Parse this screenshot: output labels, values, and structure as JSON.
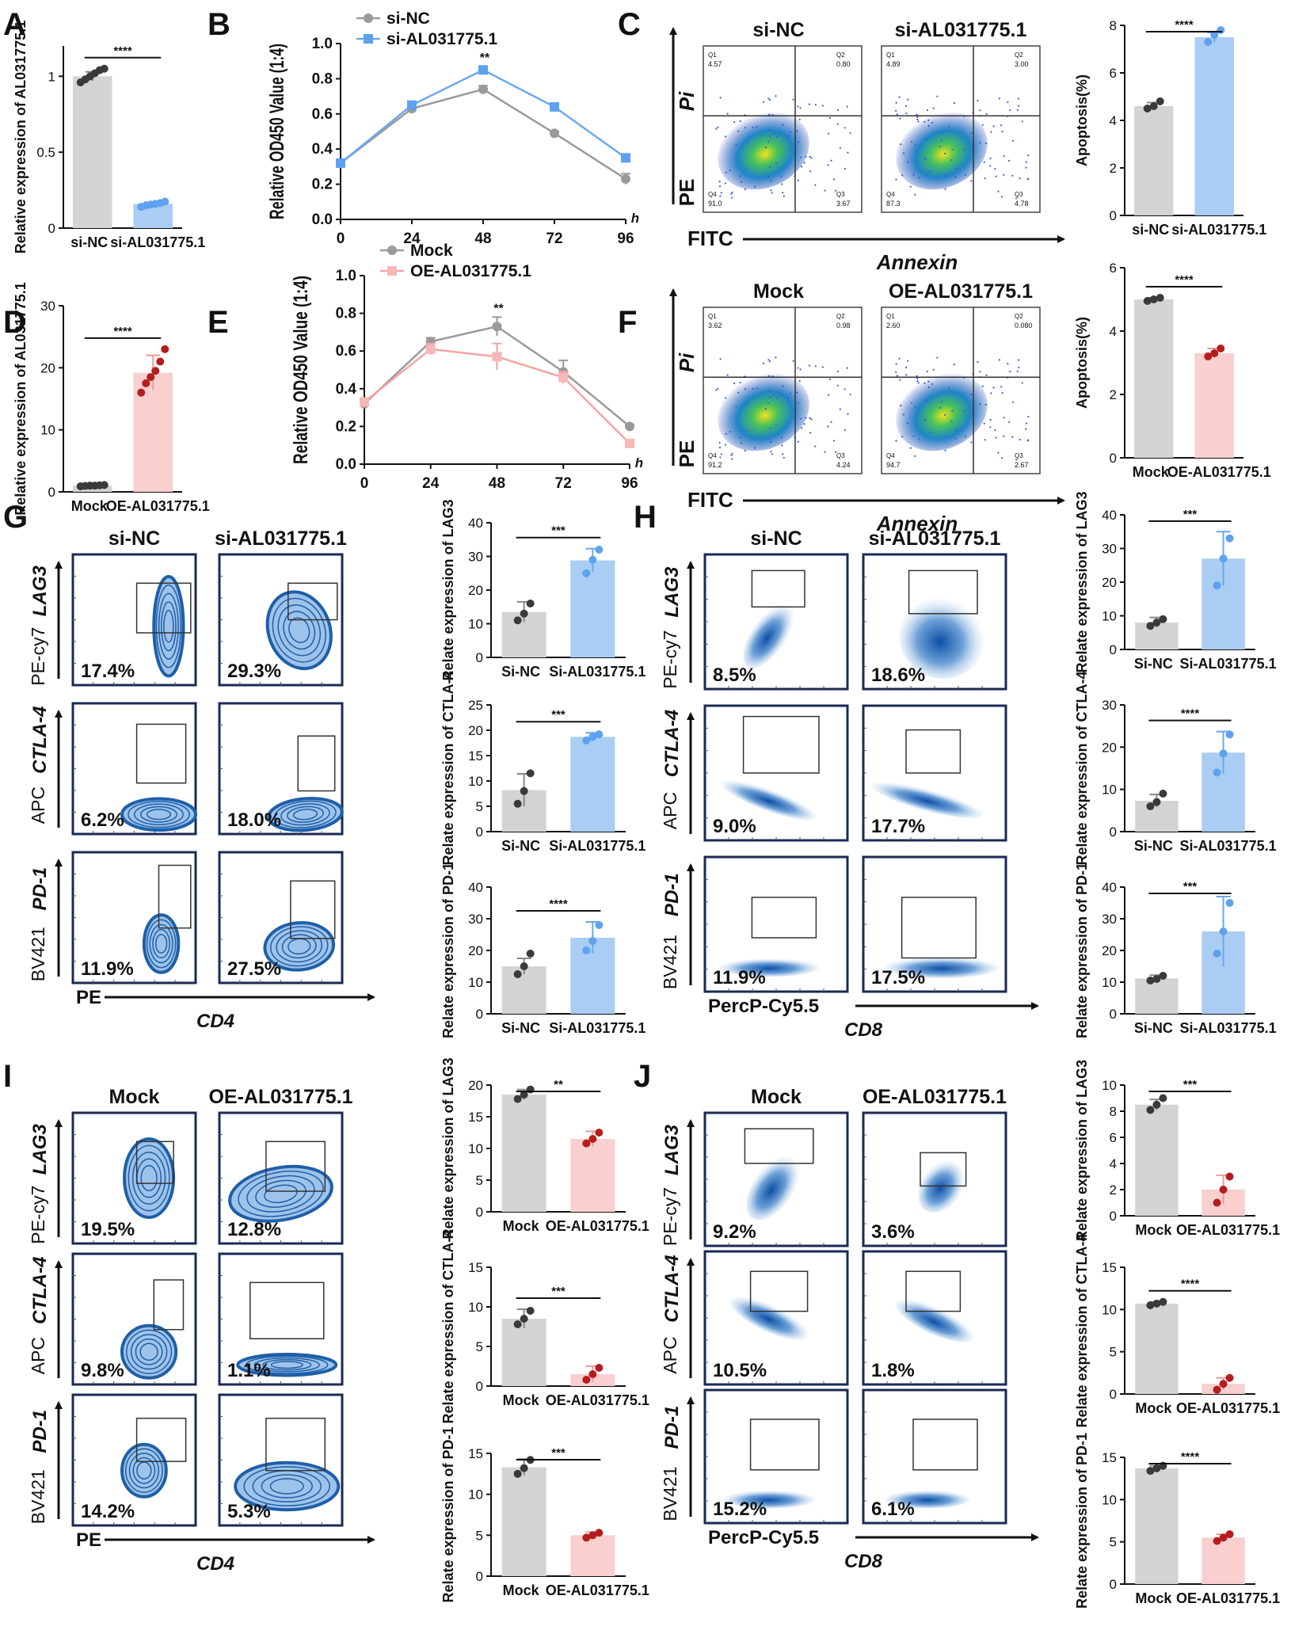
{
  "figure": {
    "colors": {
      "grey": "#d4d4d4",
      "greyDot": "#3a3a3a",
      "blue": "#a9cdf3",
      "blueDot": "#5ea1ee",
      "blueLine": "#6ba8ee",
      "pink": "#f9cfcf",
      "redDot": "#b51d1d",
      "pinkLine": "#ef9a9a",
      "flowBlue": "#1f5fa8"
    }
  },
  "panels": [
    {
      "id": "A",
      "letter": "A",
      "title": "",
      "dual_labels": false
    },
    {
      "id": "B",
      "letter": "B"
    },
    {
      "id": "C",
      "letter": "C",
      "flow_labels": [
        "si-NC",
        "si-AL031775.1"
      ],
      "y_top": "Pi",
      "y_bottom": "PE",
      "x_left": "FITC",
      "x_right": "Annexin",
      "quads": [
        [
          "4.57",
          "0.80",
          "91.0",
          "3.67"
        ],
        [
          "4.89",
          "3.00",
          "87.3",
          "4.78"
        ]
      ]
    },
    {
      "id": "D",
      "letter": "D"
    },
    {
      "id": "E",
      "letter": "E"
    },
    {
      "id": "F",
      "letter": "F",
      "flow_labels": [
        "Mock",
        "OE-AL031775.1"
      ],
      "y_top": "Pi",
      "y_bottom": "PE",
      "x_left": "FITC",
      "x_right": "Annexin",
      "quads": [
        [
          "3.62",
          "0.98",
          "91.2",
          "4.24"
        ],
        [
          "2.60",
          "0.080",
          "94.7",
          "2.67"
        ]
      ]
    },
    {
      "id": "G",
      "letter": "G",
      "flow_labels": [
        "si-NC",
        "si-AL031775.1"
      ],
      "x_left": "PE",
      "x_right": "CD4",
      "rows": [
        {
          "marker": "LAG3",
          "channel": "PE-cy7",
          "pct": [
            "17.4%",
            "29.3%"
          ]
        },
        {
          "marker": "CTLA-4",
          "channel": "APC",
          "pct": [
            "6.2%",
            "18.0%"
          ]
        },
        {
          "marker": "PD-1",
          "channel": "BV421",
          "pct": [
            "11.9%",
            "27.5%"
          ]
        }
      ]
    },
    {
      "id": "H",
      "letter": "H",
      "flow_labels": [
        "si-NC",
        "si-AL031775.1"
      ],
      "x_left": "PercP-Cy5.5",
      "x_right": "CD8",
      "rows": [
        {
          "marker": "LAG3",
          "channel": "PE-cy7",
          "pct": [
            "8.5%",
            "18.6%"
          ]
        },
        {
          "marker": "CTLA-4",
          "channel": "APC",
          "pct": [
            "9.0%",
            "17.7%"
          ]
        },
        {
          "marker": "PD-1",
          "channel": "BV421",
          "pct": [
            "11.9%",
            "17.5%"
          ]
        }
      ]
    },
    {
      "id": "I",
      "letter": "I",
      "flow_labels": [
        "Mock",
        "OE-AL031775.1"
      ],
      "x_left": "PE",
      "x_right": "CD4",
      "rows": [
        {
          "marker": "LAG3",
          "channel": "PE-cy7",
          "pct": [
            "19.5%",
            "12.8%"
          ]
        },
        {
          "marker": "CTLA-4",
          "channel": "APC",
          "pct": [
            "9.8%",
            "1.1%"
          ]
        },
        {
          "marker": "PD-1",
          "channel": "BV421",
          "pct": [
            "14.2%",
            "5.3%"
          ]
        }
      ]
    },
    {
      "id": "J",
      "letter": "J",
      "flow_labels": [
        "Mock",
        "OE-AL031775.1"
      ],
      "x_left": "PercP-Cy5.5",
      "x_right": "CD8",
      "rows": [
        {
          "marker": "LAG3",
          "channel": "PE-cy7",
          "pct": [
            "9.2%",
            "3.6%"
          ]
        },
        {
          "marker": "CTLA-4",
          "channel": "APC",
          "pct": [
            "10.5%",
            "1.8%"
          ]
        },
        {
          "marker": "PD-1",
          "channel": "BV421",
          "pct": [
            "15.2%",
            "6.1%"
          ]
        }
      ]
    }
  ],
  "chart_data": [
    {
      "id": "A",
      "type": "bar",
      "categories": [
        "si-NC",
        "si-AL031775.1"
      ],
      "values": [
        1.0,
        0.16
      ],
      "errors": [
        0.03,
        0.01
      ],
      "ylabel": "Relative expression of AL031775.1",
      "ylim": [
        0,
        1.2
      ],
      "yticks": [
        0.0,
        0.5,
        1.0
      ],
      "sig": "****",
      "color": "blue",
      "points": [
        [
          0.96,
          0.98,
          1.0,
          1.02,
          1.04,
          1.05
        ],
        [
          0.14,
          0.15,
          0.155,
          0.16,
          0.165,
          0.175
        ]
      ]
    },
    {
      "id": "B",
      "type": "line",
      "x": [
        0,
        24,
        48,
        72,
        96
      ],
      "xunit": "h",
      "ylabel": "Relative OD450 Value (1:4)",
      "ylim": [
        0,
        1.0
      ],
      "yticks": [
        0.0,
        0.2,
        0.4,
        0.6,
        0.8,
        1.0
      ],
      "sig": "**",
      "sig_x": 48,
      "series": [
        {
          "name": "si-NC",
          "values": [
            0.32,
            0.63,
            0.74,
            0.49,
            0.23
          ],
          "errors": [
            0.02,
            0.02,
            0.02,
            0.01,
            0.03
          ]
        },
        {
          "name": "si-AL031775.1",
          "values": [
            0.32,
            0.65,
            0.85,
            0.64,
            0.35
          ],
          "errors": [
            0.02,
            0.01,
            0.02,
            0.01,
            0.02
          ]
        }
      ],
      "color": "blue"
    },
    {
      "id": "C",
      "type": "bar",
      "categories": [
        "si-NC",
        "si-AL031775.1"
      ],
      "values": [
        4.6,
        7.5
      ],
      "errors": [
        0.15,
        0.2
      ],
      "ylabel": "Apoptosis(%)",
      "ylim": [
        0,
        8
      ],
      "yticks": [
        0,
        2,
        4,
        6,
        8
      ],
      "sig": "****",
      "color": "blue",
      "points": [
        [
          4.5,
          4.6,
          4.8
        ],
        [
          7.3,
          7.6,
          7.8
        ]
      ]
    },
    {
      "id": "D",
      "type": "bar",
      "categories": [
        "Mock",
        "OE-AL031775.1"
      ],
      "values": [
        1.0,
        19.2
      ],
      "errors": [
        0.1,
        2.8
      ],
      "ylabel": "Relative expression of AL031775.1",
      "ylim": [
        0,
        30
      ],
      "yticks": [
        0,
        10,
        20,
        30
      ],
      "sig": "****",
      "color": "red",
      "points": [
        [
          0.9,
          0.95,
          1.0,
          1.0,
          1.05,
          1.1
        ],
        [
          16.0,
          17.5,
          18.5,
          19.5,
          21.0,
          23.0
        ]
      ]
    },
    {
      "id": "E",
      "type": "line",
      "x": [
        0,
        24,
        48,
        72,
        96
      ],
      "xunit": "h",
      "ylabel": "Relative OD450 Value (1:4)",
      "ylim": [
        0,
        1.0
      ],
      "yticks": [
        0.0,
        0.2,
        0.4,
        0.6,
        0.8,
        1.0
      ],
      "sig": "**",
      "sig_x": 48,
      "series": [
        {
          "name": "Mock",
          "values": [
            0.32,
            0.65,
            0.73,
            0.49,
            0.2
          ],
          "errors": [
            0.02,
            0.02,
            0.05,
            0.06,
            0.01
          ]
        },
        {
          "name": "OE-AL031775.1",
          "values": [
            0.33,
            0.61,
            0.57,
            0.46,
            0.11
          ],
          "errors": [
            0.02,
            0.03,
            0.07,
            0.03,
            0.01
          ]
        }
      ],
      "color": "red"
    },
    {
      "id": "F",
      "type": "bar",
      "categories": [
        "Mock",
        "OE-AL031775.1"
      ],
      "values": [
        5.0,
        3.3
      ],
      "errors": [
        0.05,
        0.15
      ],
      "ylabel": "Apoptosis(%)",
      "ylim": [
        0,
        6
      ],
      "yticks": [
        0,
        2,
        4,
        6
      ],
      "sig": "****",
      "color": "red",
      "points": [
        [
          4.95,
          5.0,
          5.05
        ],
        [
          3.2,
          3.3,
          3.45
        ]
      ]
    },
    {
      "id": "G1",
      "type": "bar",
      "categories": [
        "Si-NC",
        "Si-AL031775.1"
      ],
      "values": [
        13.5,
        28.8
      ],
      "errors": [
        3,
        3.5
      ],
      "ylabel": "Relate expression of LAG3",
      "ylim": [
        0,
        40
      ],
      "yticks": [
        0,
        10,
        20,
        30,
        40
      ],
      "sig": "***",
      "color": "blue",
      "points": [
        [
          11,
          13,
          16
        ],
        [
          25,
          29,
          32
        ]
      ]
    },
    {
      "id": "G2",
      "type": "bar",
      "categories": [
        "Si-NC",
        "Si-AL031775.1"
      ],
      "values": [
        8.2,
        18.7
      ],
      "errors": [
        3.2,
        0.8
      ],
      "ylabel": "Relate expression of CTLA-4",
      "ylim": [
        0,
        25
      ],
      "yticks": [
        0,
        5,
        10,
        15,
        20,
        25
      ],
      "sig": "***",
      "color": "blue",
      "points": [
        [
          5.5,
          8,
          11.5
        ],
        [
          18,
          18.7,
          19.2
        ]
      ]
    },
    {
      "id": "G3",
      "type": "bar",
      "categories": [
        "Si-NC",
        "Si-AL031775.1"
      ],
      "values": [
        15,
        24
      ],
      "errors": [
        2.5,
        5
      ],
      "ylabel": "Relate expression of PD-1",
      "ylim": [
        0,
        40
      ],
      "yticks": [
        0,
        10,
        20,
        30,
        40
      ],
      "sig": "****",
      "color": "blue",
      "points": [
        [
          12.5,
          15,
          19
        ],
        [
          20,
          23,
          28
        ]
      ]
    },
    {
      "id": "H1",
      "type": "bar",
      "categories": [
        "Si-NC",
        "Si-AL031775.1"
      ],
      "values": [
        8,
        27
      ],
      "errors": [
        1.5,
        8
      ],
      "ylabel": "Relate expression of LAG3",
      "ylim": [
        0,
        40
      ],
      "yticks": [
        0,
        10,
        20,
        30,
        40
      ],
      "sig": "***",
      "color": "blue",
      "points": [
        [
          7,
          8,
          9
        ],
        [
          19,
          27,
          33
        ]
      ]
    },
    {
      "id": "H2",
      "type": "bar",
      "categories": [
        "Si-NC",
        "Si-AL031775.1"
      ],
      "values": [
        7.3,
        18.7
      ],
      "errors": [
        1.5,
        5
      ],
      "ylabel": "Relate expression of CTLA-4",
      "ylim": [
        0,
        30
      ],
      "yticks": [
        0,
        10,
        20,
        30
      ],
      "sig": "****",
      "color": "blue",
      "points": [
        [
          6,
          7,
          9
        ],
        [
          14,
          18.5,
          23
        ]
      ]
    },
    {
      "id": "H3",
      "type": "bar",
      "categories": [
        "Si-NC",
        "Si-AL031775.1"
      ],
      "values": [
        11.2,
        26
      ],
      "errors": [
        1,
        11
      ],
      "ylabel": "Relate expression of PD-1",
      "ylim": [
        0,
        40
      ],
      "yticks": [
        0,
        10,
        20,
        30,
        40
      ],
      "sig": "***",
      "color": "blue",
      "points": [
        [
          10.5,
          11,
          12
        ],
        [
          19,
          26,
          35
        ]
      ]
    },
    {
      "id": "I1",
      "type": "bar",
      "categories": [
        "Mock",
        "OE-AL031775.1"
      ],
      "values": [
        18.5,
        11.5
      ],
      "errors": [
        0.8,
        1.2
      ],
      "ylabel": "Relate expression of LAG3",
      "ylim": [
        0,
        20
      ],
      "yticks": [
        0,
        5,
        10,
        15,
        20
      ],
      "sig": "**",
      "color": "red",
      "points": [
        [
          17.8,
          18.5,
          19.3
        ],
        [
          10.8,
          11.5,
          12.5
        ]
      ]
    },
    {
      "id": "I2",
      "type": "bar",
      "categories": [
        "Mock",
        "OE-AL031775.1"
      ],
      "values": [
        8.5,
        1.5
      ],
      "errors": [
        1.2,
        1.0
      ],
      "ylabel": "Relate expression of CTLA-4",
      "ylim": [
        0,
        15
      ],
      "yticks": [
        0,
        5,
        10,
        15
      ],
      "sig": "***",
      "color": "red",
      "points": [
        [
          7.8,
          8.5,
          9.5
        ],
        [
          0.8,
          1.5,
          2.3
        ]
      ]
    },
    {
      "id": "I3",
      "type": "bar",
      "categories": [
        "Mock",
        "OE-AL031775.1"
      ],
      "values": [
        13.3,
        5
      ],
      "errors": [
        1,
        0.4
      ],
      "ylabel": "Relate expression of PD-1",
      "ylim": [
        0,
        15
      ],
      "yticks": [
        0,
        5,
        10,
        15
      ],
      "sig": "***",
      "color": "red",
      "points": [
        [
          12.5,
          13.2,
          14.2
        ],
        [
          4.7,
          5,
          5.3
        ]
      ]
    },
    {
      "id": "J1",
      "type": "bar",
      "categories": [
        "Mock",
        "OE-AL031775.1"
      ],
      "values": [
        8.5,
        2
      ],
      "errors": [
        0.4,
        1.1
      ],
      "ylabel": "Relate expression of LAG3",
      "ylim": [
        0,
        10
      ],
      "yticks": [
        0,
        2,
        4,
        6,
        8,
        10
      ],
      "sig": "***",
      "color": "red",
      "points": [
        [
          8.1,
          8.5,
          9.0
        ],
        [
          1.0,
          2.0,
          3.0
        ]
      ]
    },
    {
      "id": "J2",
      "type": "bar",
      "categories": [
        "Mock",
        "OE-AL031775.1"
      ],
      "values": [
        10.7,
        1.2
      ],
      "errors": [
        0.2,
        0.7
      ],
      "ylabel": "Relate expression of CTLA-4",
      "ylim": [
        0,
        15
      ],
      "yticks": [
        0,
        5,
        10,
        15
      ],
      "sig": "****",
      "color": "red",
      "points": [
        [
          10.5,
          10.7,
          10.9
        ],
        [
          0.5,
          1.2,
          1.9
        ]
      ]
    },
    {
      "id": "J3",
      "type": "bar",
      "categories": [
        "Mock",
        "OE-AL031775.1"
      ],
      "values": [
        13.7,
        5.5
      ],
      "errors": [
        0.3,
        0.4
      ],
      "ylabel": "Relate expression of PD-1",
      "ylim": [
        0,
        15
      ],
      "yticks": [
        0,
        5,
        10,
        15
      ],
      "sig": "****",
      "color": "red",
      "points": [
        [
          13.4,
          13.7,
          14.0
        ],
        [
          5.1,
          5.5,
          5.9
        ]
      ]
    }
  ]
}
